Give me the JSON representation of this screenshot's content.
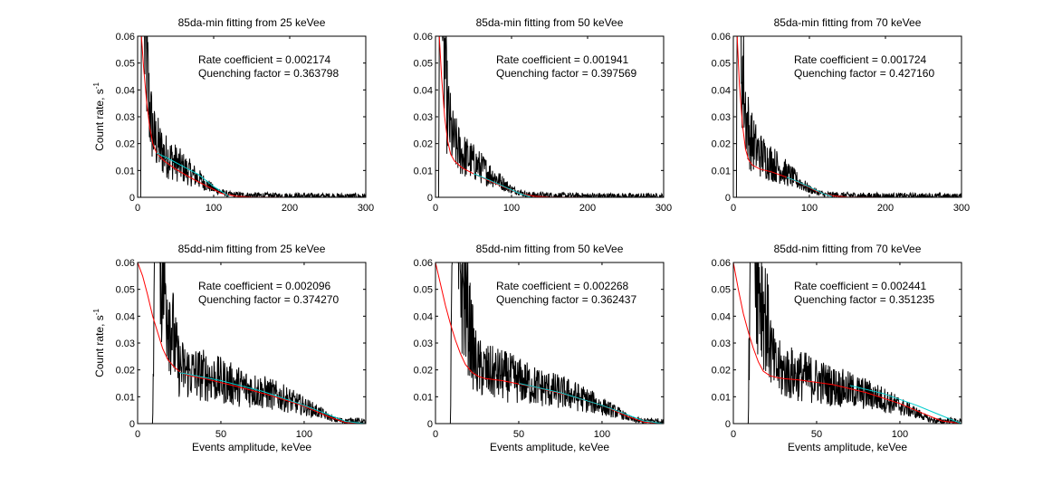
{
  "figure": {
    "background": "#ffffff"
  },
  "colors": {
    "raw": "#000000",
    "fit": "#ff0000",
    "segment": "#00cccc"
  },
  "chart_data": [
    {
      "type": "line",
      "title": "85da-min fitting from 25 keVee",
      "xlabel": "",
      "ylabel": "Count rate, s",
      "ylabel_sup": "-1",
      "xlim": [
        0,
        300
      ],
      "ylim": [
        0,
        0.06
      ],
      "xticks": [
        0,
        100,
        200,
        300
      ],
      "yticks": [
        0,
        0.01,
        0.02,
        0.03,
        0.04,
        0.05,
        0.06
      ],
      "annotation": [
        "Rate coefficient = 0.002174",
        "Quenching factor = 0.363798"
      ],
      "series": [
        {
          "role": "raw",
          "color": "#000000",
          "x": [
            0,
            4,
            5,
            7,
            9,
            12,
            15,
            18,
            22,
            26,
            30,
            35,
            40,
            50,
            60,
            70,
            80,
            90,
            100,
            110,
            120,
            140,
            170,
            200,
            250,
            300
          ],
          "y": [
            0,
            0,
            0.06,
            0.06,
            0.06,
            0.05,
            0.035,
            0.028,
            0.022,
            0.02,
            0.018,
            0.016,
            0.015,
            0.013,
            0.011,
            0.009,
            0.007,
            0.005,
            0.003,
            0.002,
            0.001,
            0.0008,
            0.0006,
            0.0005,
            0.0004,
            0.0003
          ]
        },
        {
          "role": "fit",
          "color": "#ff0000",
          "x": [
            5,
            8,
            12,
            16,
            20,
            25,
            35,
            50,
            70,
            90,
            110,
            130,
            150,
            200,
            300
          ],
          "y": [
            0.06,
            0.048,
            0.035,
            0.026,
            0.02,
            0.0165,
            0.0135,
            0.0105,
            0.0072,
            0.0043,
            0.0015,
            0.0004,
            0.0001,
            0,
            0
          ]
        },
        {
          "role": "segment",
          "color": "#00cccc",
          "x": [
            25,
            40,
            60,
            80,
            100,
            120
          ],
          "y": [
            0.0165,
            0.0145,
            0.0115,
            0.0085,
            0.004,
            0.0005
          ]
        }
      ]
    },
    {
      "type": "line",
      "title": "85da-min fitting from 50 keVee",
      "xlabel": "",
      "ylabel": "",
      "xlim": [
        0,
        300
      ],
      "ylim": [
        0,
        0.06
      ],
      "xticks": [
        0,
        100,
        200,
        300
      ],
      "yticks": [
        0,
        0.01,
        0.02,
        0.03,
        0.04,
        0.05,
        0.06
      ],
      "annotation": [
        "Rate coefficient = 0.001941",
        "Quenching factor = 0.397569"
      ],
      "series": [
        {
          "role": "raw",
          "color": "#000000",
          "x": [
            0,
            4,
            5,
            7,
            9,
            12,
            15,
            18,
            22,
            26,
            30,
            35,
            40,
            50,
            60,
            70,
            80,
            90,
            100,
            110,
            120,
            140,
            170,
            200,
            250,
            300
          ],
          "y": [
            0,
            0,
            0.06,
            0.06,
            0.06,
            0.05,
            0.035,
            0.028,
            0.022,
            0.02,
            0.018,
            0.016,
            0.015,
            0.013,
            0.011,
            0.009,
            0.007,
            0.005,
            0.003,
            0.002,
            0.001,
            0.0008,
            0.0006,
            0.0005,
            0.0004,
            0.0003
          ]
        },
        {
          "role": "fit",
          "color": "#ff0000",
          "x": [
            5,
            8,
            12,
            16,
            20,
            25,
            35,
            50,
            70,
            90,
            110,
            130,
            150,
            200,
            300
          ],
          "y": [
            0.06,
            0.045,
            0.03,
            0.021,
            0.016,
            0.0135,
            0.011,
            0.0088,
            0.0062,
            0.0038,
            0.0014,
            0.0004,
            0.0001,
            0,
            0
          ]
        },
        {
          "role": "segment",
          "color": "#00cccc",
          "x": [
            50,
            70,
            90,
            110,
            125
          ],
          "y": [
            0.0088,
            0.0065,
            0.004,
            0.0015,
            0.0002
          ]
        }
      ]
    },
    {
      "type": "line",
      "title": "85da-min fitting from 70 keVee",
      "xlabel": "",
      "ylabel": "",
      "xlim": [
        0,
        300
      ],
      "ylim": [
        0,
        0.06
      ],
      "xticks": [
        0,
        100,
        200,
        300
      ],
      "yticks": [
        0,
        0.01,
        0.02,
        0.03,
        0.04,
        0.05,
        0.06
      ],
      "annotation": [
        "Rate coefficient = 0.001724",
        "Quenching factor = 0.427160"
      ],
      "series": [
        {
          "role": "raw",
          "color": "#000000",
          "x": [
            0,
            4,
            5,
            7,
            9,
            12,
            15,
            18,
            22,
            26,
            30,
            35,
            40,
            50,
            60,
            70,
            80,
            90,
            100,
            110,
            120,
            140,
            170,
            200,
            250,
            300
          ],
          "y": [
            0,
            0,
            0.06,
            0.06,
            0.06,
            0.05,
            0.035,
            0.028,
            0.022,
            0.02,
            0.018,
            0.016,
            0.015,
            0.013,
            0.011,
            0.009,
            0.007,
            0.005,
            0.003,
            0.002,
            0.001,
            0.0008,
            0.0006,
            0.0005,
            0.0004,
            0.0003
          ]
        },
        {
          "role": "fit",
          "color": "#ff0000",
          "x": [
            5,
            8,
            12,
            16,
            20,
            25,
            35,
            50,
            70,
            90,
            110,
            130,
            150,
            200,
            300
          ],
          "y": [
            0.06,
            0.042,
            0.027,
            0.018,
            0.014,
            0.012,
            0.0105,
            0.0095,
            0.0075,
            0.005,
            0.0022,
            0.0006,
            0.0001,
            0,
            0
          ]
        },
        {
          "role": "segment",
          "color": "#00cccc",
          "x": [
            70,
            85,
            100,
            115,
            130
          ],
          "y": [
            0.0075,
            0.0058,
            0.0038,
            0.0018,
            0.0003
          ]
        }
      ]
    },
    {
      "type": "line",
      "title": "85dd-nim fitting from 25 keVee",
      "xlabel": "Events amplitude, keVee",
      "ylabel": "Count rate, s",
      "ylabel_sup": "-1",
      "xlim": [
        0,
        137
      ],
      "ylim": [
        0,
        0.06
      ],
      "xticks": [
        0,
        50,
        100
      ],
      "yticks": [
        0,
        0.01,
        0.02,
        0.03,
        0.04,
        0.05,
        0.06
      ],
      "annotation": [
        "Rate coefficient = 0.002096",
        "Quenching factor = 0.374270"
      ],
      "series": [
        {
          "role": "raw",
          "color": "#000000",
          "x": [
            0,
            9,
            10,
            11,
            13,
            15,
            17,
            19,
            21,
            23,
            25,
            28,
            32,
            40,
            50,
            60,
            70,
            80,
            90,
            100,
            110,
            118,
            125,
            130,
            137
          ],
          "y": [
            0,
            0,
            0.06,
            0.06,
            0.06,
            0.056,
            0.048,
            0.042,
            0.034,
            0.026,
            0.021,
            0.02,
            0.019,
            0.018,
            0.016,
            0.014,
            0.0125,
            0.011,
            0.009,
            0.0065,
            0.004,
            0.0015,
            0.0008,
            0.0012,
            0.0005
          ]
        },
        {
          "role": "fit",
          "color": "#ff0000",
          "x": [
            0,
            3,
            6,
            9,
            12,
            15,
            18,
            22,
            26,
            30,
            40,
            60,
            80,
            100,
            115,
            125,
            137
          ],
          "y": [
            0.06,
            0.055,
            0.048,
            0.04,
            0.034,
            0.028,
            0.024,
            0.021,
            0.019,
            0.018,
            0.0168,
            0.0138,
            0.0105,
            0.0065,
            0.0025,
            0.0004,
            0
          ]
        },
        {
          "role": "segment",
          "color": "#00cccc",
          "x": [
            25,
            50,
            75,
            100,
            125,
            137
          ],
          "y": [
            0.019,
            0.016,
            0.012,
            0.0068,
            0.0008,
            0
          ]
        }
      ]
    },
    {
      "type": "line",
      "title": "85dd-nim fitting from 50 keVee",
      "xlabel": "Events amplitude, keVee",
      "ylabel": "",
      "xlim": [
        0,
        137
      ],
      "ylim": [
        0,
        0.06
      ],
      "xticks": [
        0,
        50,
        100
      ],
      "yticks": [
        0,
        0.01,
        0.02,
        0.03,
        0.04,
        0.05,
        0.06
      ],
      "annotation": [
        "Rate coefficient = 0.002268",
        "Quenching factor = 0.362437"
      ],
      "series": [
        {
          "role": "raw",
          "color": "#000000",
          "x": [
            0,
            9,
            10,
            11,
            13,
            15,
            17,
            19,
            21,
            23,
            25,
            28,
            32,
            40,
            50,
            60,
            70,
            80,
            90,
            100,
            110,
            118,
            125,
            130,
            137
          ],
          "y": [
            0,
            0,
            0.06,
            0.06,
            0.06,
            0.056,
            0.048,
            0.042,
            0.034,
            0.026,
            0.021,
            0.02,
            0.019,
            0.018,
            0.016,
            0.014,
            0.0125,
            0.011,
            0.009,
            0.0065,
            0.004,
            0.0015,
            0.0008,
            0.0012,
            0.0005
          ]
        },
        {
          "role": "fit",
          "color": "#ff0000",
          "x": [
            0,
            3,
            6,
            9,
            12,
            15,
            18,
            22,
            26,
            30,
            40,
            60,
            80,
            100,
            115,
            125,
            137
          ],
          "y": [
            0.06,
            0.052,
            0.044,
            0.037,
            0.031,
            0.026,
            0.022,
            0.019,
            0.0175,
            0.0168,
            0.016,
            0.0135,
            0.0105,
            0.0068,
            0.0028,
            0.0006,
            0
          ]
        },
        {
          "role": "segment",
          "color": "#00cccc",
          "x": [
            50,
            75,
            100,
            125,
            137
          ],
          "y": [
            0.015,
            0.0115,
            0.0068,
            0.001,
            0
          ]
        }
      ]
    },
    {
      "type": "line",
      "title": "85dd-nim fitting from 70 keVee",
      "xlabel": "Events amplitude, keVee",
      "ylabel": "",
      "xlim": [
        0,
        137
      ],
      "ylim": [
        0,
        0.06
      ],
      "xticks": [
        0,
        50,
        100
      ],
      "yticks": [
        0,
        0.01,
        0.02,
        0.03,
        0.04,
        0.05,
        0.06
      ],
      "annotation": [
        "Rate coefficient = 0.002441",
        "Quenching factor = 0.351235"
      ],
      "series": [
        {
          "role": "raw",
          "color": "#000000",
          "x": [
            0,
            9,
            10,
            11,
            13,
            15,
            17,
            19,
            21,
            23,
            25,
            28,
            32,
            40,
            50,
            60,
            70,
            80,
            90,
            100,
            110,
            118,
            125,
            130,
            137
          ],
          "y": [
            0,
            0,
            0.06,
            0.06,
            0.06,
            0.056,
            0.048,
            0.042,
            0.034,
            0.026,
            0.021,
            0.02,
            0.019,
            0.018,
            0.016,
            0.014,
            0.0125,
            0.011,
            0.009,
            0.0065,
            0.004,
            0.0015,
            0.0008,
            0.0012,
            0.0005
          ]
        },
        {
          "role": "fit",
          "color": "#ff0000",
          "x": [
            0,
            3,
            6,
            9,
            12,
            15,
            18,
            22,
            26,
            30,
            40,
            60,
            80,
            100,
            115,
            125,
            137
          ],
          "y": [
            0.06,
            0.05,
            0.041,
            0.034,
            0.028,
            0.023,
            0.0195,
            0.0178,
            0.0172,
            0.0168,
            0.0162,
            0.0145,
            0.0115,
            0.0075,
            0.0035,
            0.001,
            0
          ]
        },
        {
          "role": "segment",
          "color": "#00cccc",
          "x": [
            70,
            90,
            110,
            125,
            137
          ],
          "y": [
            0.0142,
            0.0112,
            0.0068,
            0.003,
            0
          ]
        }
      ]
    }
  ]
}
